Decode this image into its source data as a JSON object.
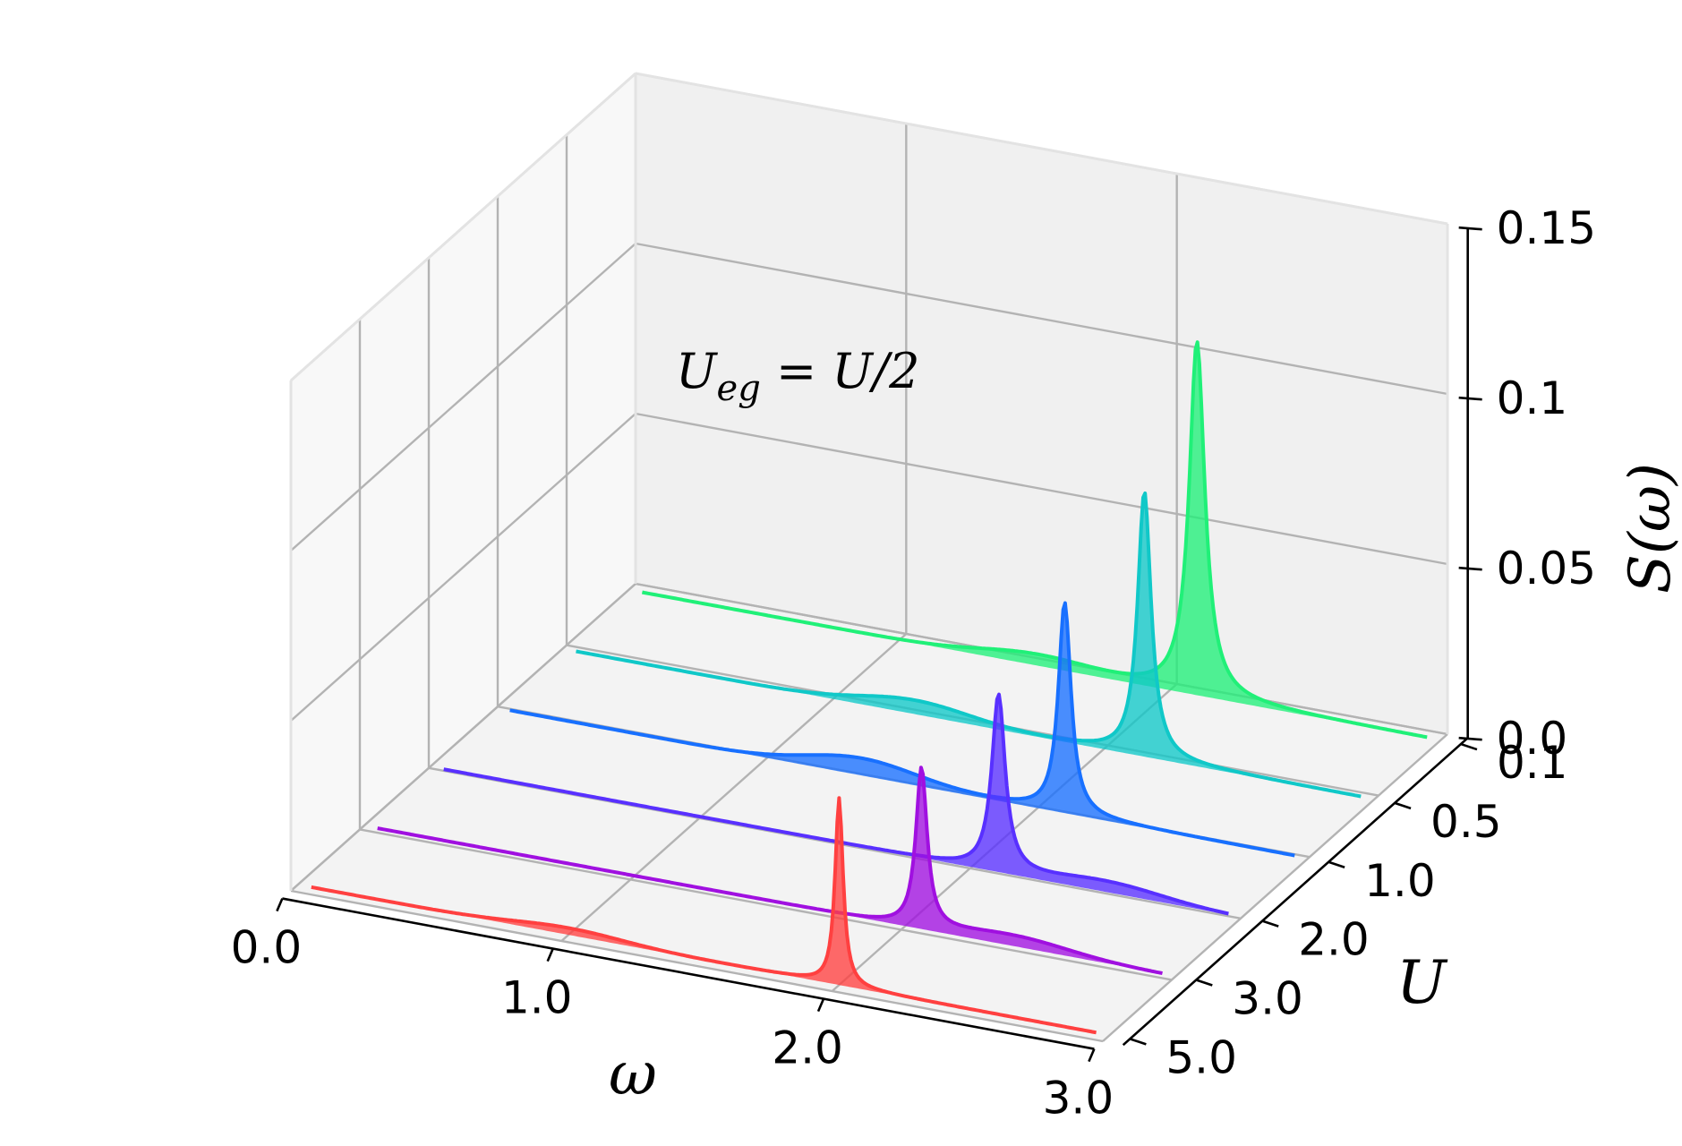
{
  "chart_data": {
    "type": "area",
    "projection": "3d-waterfall",
    "annotation": {
      "main": "U",
      "sub": "eg",
      "rest": " = U/2"
    },
    "xlabel": "ω",
    "ylabel": "U",
    "zlabel": "S(ω)",
    "xlim": [
      0.0,
      3.0
    ],
    "zlim": [
      0.0,
      0.15
    ],
    "x_ticks": [
      "0.0",
      "1.0",
      "2.0",
      "3.0"
    ],
    "y_ticks": [
      "0.1",
      "0.5",
      "1.0",
      "2.0",
      "3.0",
      "5.0"
    ],
    "z_ticks": [
      "0.0",
      "0.05",
      "0.1",
      "0.15"
    ],
    "grid": true,
    "series": [
      {
        "U": "5.0",
        "color": "#ff4040",
        "peak_omega": 2.0,
        "peak_height": 0.055,
        "width": 0.018,
        "hump_omega": 1.0,
        "hump_height": 0.002
      },
      {
        "U": "3.0",
        "color": "#a010e0",
        "peak_omega": 2.06,
        "peak_height": 0.047,
        "width": 0.025,
        "hump_omega": 2.4,
        "hump_height": 0.003
      },
      {
        "U": "2.0",
        "color": "#5830ff",
        "peak_omega": 2.1,
        "peak_height": 0.052,
        "width": 0.03,
        "hump_omega": 2.5,
        "hump_height": 0.003
      },
      {
        "U": "1.0",
        "color": "#1870ff",
        "peak_omega": 2.1,
        "peak_height": 0.062,
        "width": 0.028,
        "hump_omega": 1.35,
        "hump_height": 0.005
      },
      {
        "U": "0.5",
        "color": "#10c8c8",
        "peak_omega": 2.15,
        "peak_height": 0.078,
        "width": 0.03,
        "hump_omega": 1.3,
        "hump_height": 0.004
      },
      {
        "U": "0.1",
        "color": "#20f078",
        "peak_omega": 2.1,
        "peak_height": 0.104,
        "width": 0.035,
        "hump_omega": 1.5,
        "hump_height": 0.003
      }
    ]
  }
}
